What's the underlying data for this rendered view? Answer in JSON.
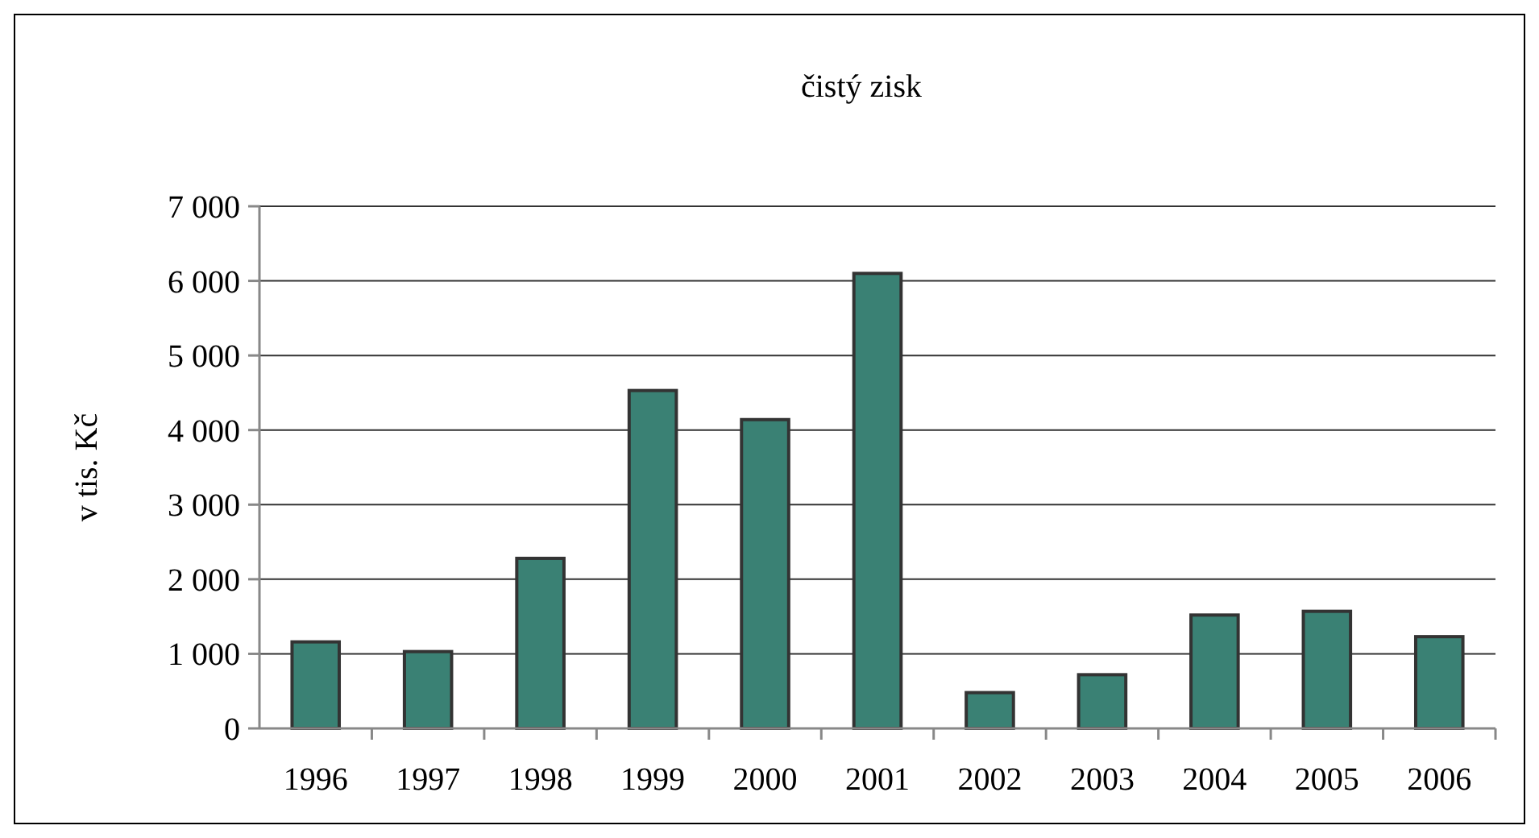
{
  "chart_data": {
    "type": "bar",
    "title": "čistý zisk",
    "ylabel": "v tis. Kč",
    "categories": [
      "1996",
      "1997",
      "1998",
      "1999",
      "2000",
      "2001",
      "2002",
      "2003",
      "2004",
      "2005",
      "2006"
    ],
    "values": [
      1160,
      1030,
      2280,
      4530,
      4140,
      6100,
      480,
      720,
      1520,
      1570,
      1230
    ],
    "color": "#3a8174",
    "ylim": [
      0,
      7000
    ],
    "yticks": [
      0,
      {
        "value": 1000,
        "label": "1 000"
      },
      {
        "value": 2000,
        "label": "2 000"
      },
      {
        "value": 3000,
        "label": "3 000"
      },
      {
        "value": 4000,
        "label": "4 000"
      },
      {
        "value": 5000,
        "label": "5 000"
      },
      {
        "value": 6000,
        "label": "6 000"
      },
      {
        "value": 7000,
        "label": "7 000"
      }
    ],
    "grid": "y"
  }
}
